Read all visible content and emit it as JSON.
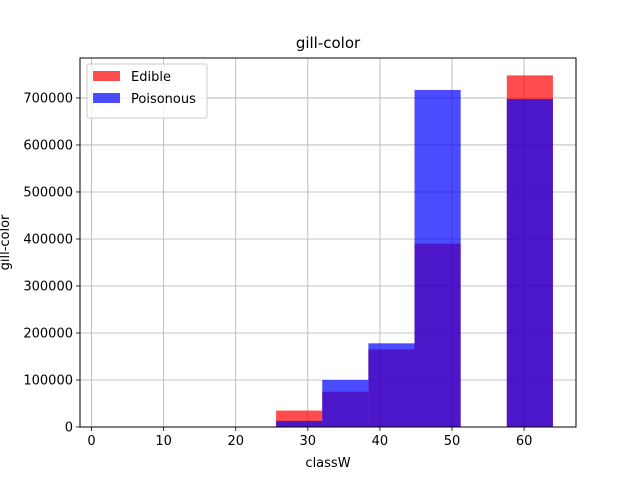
{
  "chart_data": {
    "type": "bar",
    "title": "gill-color",
    "xlabel": "classW",
    "ylabel": "gill-color",
    "xlim": [
      -1.6,
      67.2
    ],
    "ylim": [
      0,
      785000
    ],
    "xticks": [
      0,
      10,
      20,
      30,
      40,
      50,
      60
    ],
    "yticks": [
      0,
      100000,
      200000,
      300000,
      400000,
      500000,
      600000,
      700000
    ],
    "bin_edges": [
      0,
      6.4,
      12.8,
      19.2,
      25.6,
      32.0,
      38.4,
      44.8,
      51.2,
      57.6,
      64.0
    ],
    "grid": true,
    "legend_position": "top-left",
    "series": [
      {
        "name": "Edible",
        "color": "#ff0000",
        "opacity": 0.7,
        "values": [
          0,
          0,
          0,
          0,
          35000,
          75000,
          165000,
          390000,
          0,
          748000
        ]
      },
      {
        "name": "Poisonous",
        "color": "#0000ff",
        "opacity": 0.7,
        "values": [
          0,
          0,
          0,
          0,
          13000,
          100000,
          178000,
          717000,
          0,
          698000
        ]
      }
    ]
  }
}
